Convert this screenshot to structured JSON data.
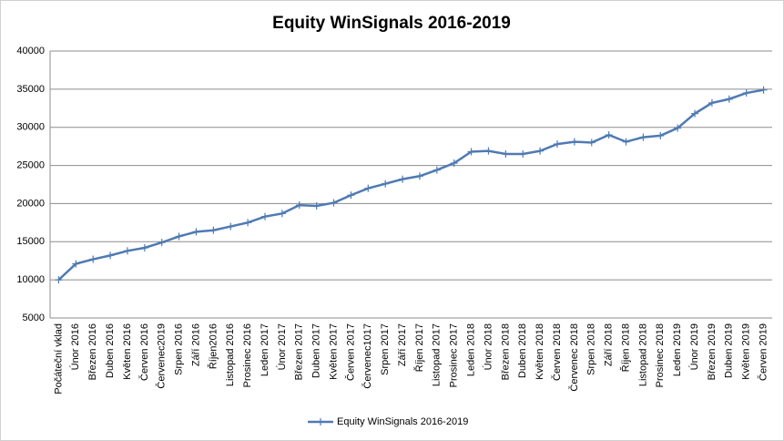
{
  "chart_data": {
    "type": "line",
    "title": "Equity WinSignals 2016-2019",
    "categories": [
      "Počáteční vklad",
      "Únor 2016",
      "Březen 2016",
      "Duben 2016",
      "Květen 2016",
      "Červen 2016",
      "Červenec2019",
      "Srpen 2016",
      "Září 2016",
      "Říjen2016",
      "Listopad 2016",
      "Prosinec 2016",
      "Leden 2017",
      "Únor 2017",
      "Březen 2017",
      "Duben 2017",
      "Květen 2017",
      "Červen 2017",
      "Červenec1017",
      "Srpen 2017",
      "Září 2017",
      "Říjen 2017",
      "Listopad 2017",
      "Prosinec 2017",
      "Leden 2018",
      "Únor 2018",
      "Březen 2018",
      "Duben 2018",
      "Květen 2018",
      "Červen 2018",
      "Červenec 2018",
      "Srpen 2018",
      "Září 2018",
      "Říjen 2018",
      "Listopad 2018",
      "Prosinec 2018",
      "Leden 2019",
      "Únor 2019",
      "Březen 2019",
      "Duben 2019",
      "Květen 2019",
      "Červen 2019"
    ],
    "series": [
      {
        "name": "Equity WinSignals 2016-2019",
        "color": "#4f7ab3",
        "values": [
          10000,
          12100,
          12700,
          13200,
          13800,
          14200,
          14900,
          15700,
          16300,
          16500,
          17000,
          17500,
          18300,
          18700,
          19800,
          19700,
          20100,
          21100,
          22000,
          22600,
          23200,
          23600,
          24400,
          25300,
          26800,
          26900,
          26500,
          26500,
          26900,
          27800,
          28100,
          28000,
          29000,
          28100,
          28700,
          28900,
          29900,
          31800,
          33200,
          33700,
          34500,
          34900
        ]
      }
    ],
    "ylim": [
      5000,
      40000
    ],
    "yticks": [
      5000,
      10000,
      15000,
      20000,
      25000,
      30000,
      35000,
      40000
    ],
    "grid": true,
    "legend": "bottom"
  }
}
